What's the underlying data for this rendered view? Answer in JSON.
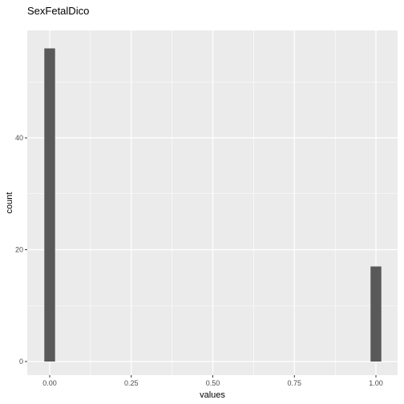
{
  "chart_data": {
    "type": "bar",
    "title": "SexFetalDico",
    "xlabel": "values",
    "ylabel": "count",
    "x": [
      0.0,
      1.0
    ],
    "values": [
      56,
      17
    ],
    "bin_width": 0.033,
    "xlim": [
      -0.05,
      1.05
    ],
    "ylim": [
      0,
      58
    ],
    "x_ticks": [
      0.0,
      0.25,
      0.5,
      0.75,
      1.0
    ],
    "x_tick_labels": [
      "0.00",
      "0.25",
      "0.50",
      "0.75",
      "1.00"
    ],
    "y_ticks": [
      0,
      20,
      40
    ],
    "y_tick_labels": [
      "0",
      "20",
      "40"
    ],
    "grid": true,
    "colors": {
      "panel": "#ebebeb",
      "grid_major": "#ffffff",
      "bar": "#595959",
      "tick_text": "#4d4d4d",
      "tick_mark": "#333333"
    }
  }
}
